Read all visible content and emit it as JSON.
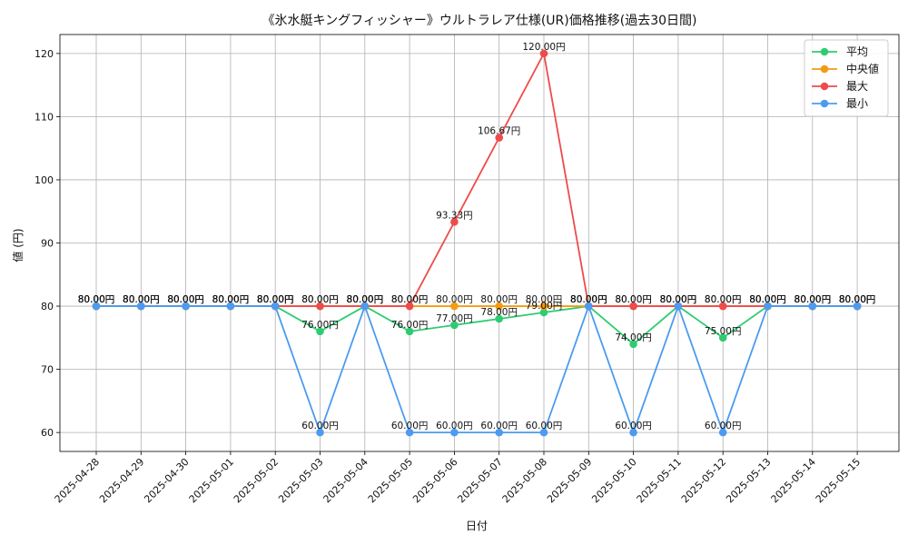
{
  "chart_data": {
    "type": "line",
    "title": "《氷水艇キングフィッシャー》ウルトラレア仕様(UR)価格推移(過去30日間)",
    "xlabel": "日付",
    "ylabel": "値 (円)",
    "categories": [
      "2025-04-28",
      "2025-04-29",
      "2025-04-30",
      "2025-05-01",
      "2025-05-02",
      "2025-05-03",
      "2025-05-04",
      "2025-05-05",
      "2025-05-06",
      "2025-05-07",
      "2025-05-08",
      "2025-05-09",
      "2025-05-10",
      "2025-05-11",
      "2025-05-12",
      "2025-05-13",
      "2025-05-14",
      "2025-05-15"
    ],
    "ylim": [
      57,
      123
    ],
    "yticks": [
      60,
      70,
      80,
      90,
      100,
      110,
      120
    ],
    "grid": true,
    "legend_position": "top-right",
    "value_suffix": "円",
    "series": [
      {
        "name": "平均",
        "color": "#2ecc71",
        "values": [
          80,
          80,
          80,
          80,
          80,
          76,
          80,
          76,
          77,
          78,
          79,
          80,
          74,
          80,
          75,
          80,
          80,
          80
        ]
      },
      {
        "name": "中央値",
        "color": "#f39c12",
        "values": [
          80,
          80,
          80,
          80,
          80,
          80,
          80,
          80,
          80,
          80,
          80,
          80,
          80,
          80,
          80,
          80,
          80,
          80
        ]
      },
      {
        "name": "最大",
        "color": "#ef4b4b",
        "values": [
          80,
          80,
          80,
          80,
          80,
          80,
          80,
          80,
          93.33,
          106.67,
          120,
          80,
          80,
          80,
          80,
          80,
          80,
          80
        ]
      },
      {
        "name": "最小",
        "color": "#4c9bf0",
        "values": [
          80,
          80,
          80,
          80,
          80,
          60,
          80,
          60,
          60,
          60,
          60,
          80,
          60,
          80,
          60,
          80,
          80,
          80
        ]
      }
    ]
  }
}
